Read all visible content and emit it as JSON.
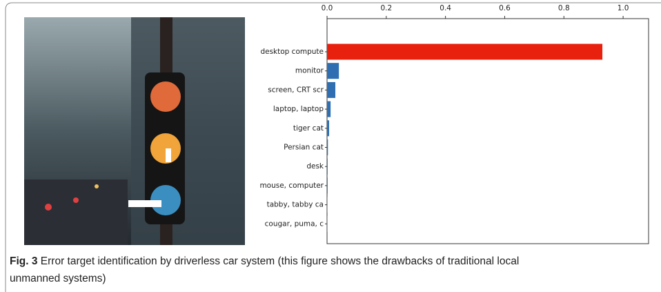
{
  "chart_data": {
    "type": "barh",
    "categories": [
      "desktop compute",
      "monitor",
      "screen, CRT scr",
      "laptop, laptop",
      "tiger cat",
      "Persian cat",
      "desk",
      "mouse, computer",
      "tabby, tabby ca",
      "cougar, puma, c"
    ],
    "values": [
      0.93,
      0.04,
      0.028,
      0.012,
      0.007,
      0.003,
      0.002,
      0.002,
      0.001,
      0.001
    ],
    "colors": [
      "#e8210f",
      "#2f6fb1",
      "#2f6fb1",
      "#2f6fb1",
      "#2f6fb1",
      "#2f6fb1",
      "#2f6fb1",
      "#2f6fb1",
      "#2f6fb1",
      "#2f6fb1"
    ],
    "xlim": [
      0,
      1.086
    ],
    "xticks": [
      {
        "value": 0,
        "label": "0.0"
      },
      0.2,
      0.4,
      0.6,
      0.8,
      {
        "value": 1,
        "label": "1.0"
      }
    ]
  },
  "caption": {
    "label": "Fig. 3",
    "text": "Error target identification by driverless car system (this figure shows the drawbacks of traditional local unmanned systems)"
  }
}
